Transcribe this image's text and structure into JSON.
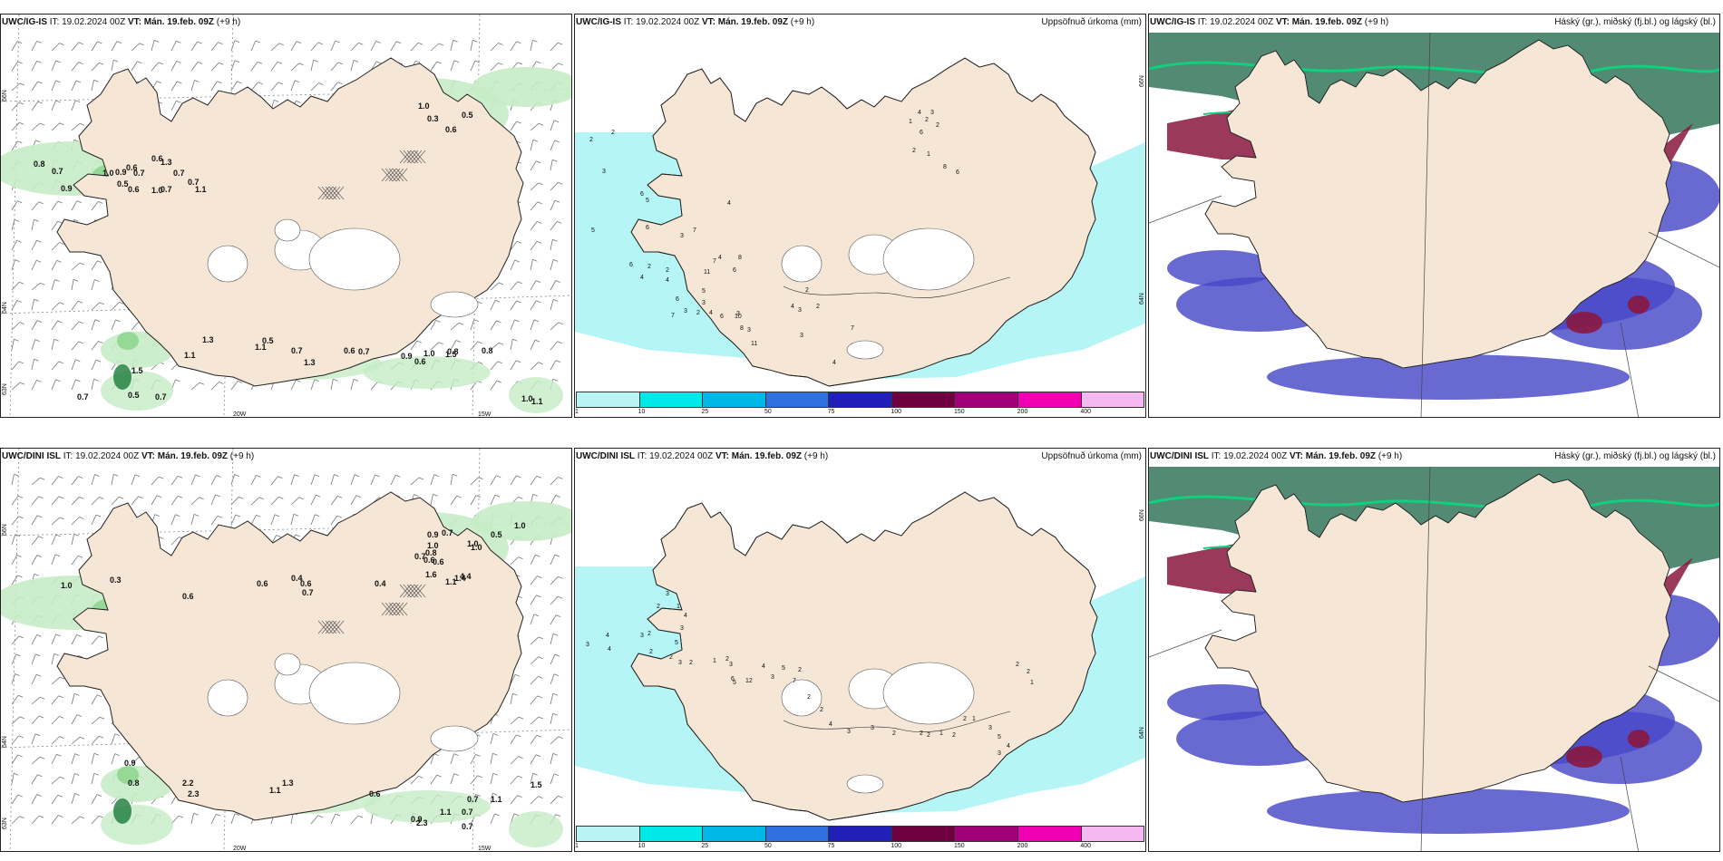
{
  "panels": [
    {
      "model": "UWC/IG-IS",
      "it_label": "IT:",
      "it_value": "19.02.2024 00Z",
      "vt_label": "VT:",
      "vt_value": "Mán. 19.feb. 09Z",
      "lead": "(+9 h)",
      "right_title": "",
      "kind": "wind-precip",
      "lat_labels": [
        "66N",
        "64N",
        "63N"
      ],
      "lon_labels": [
        "20W",
        "15W"
      ],
      "values": [
        "0.8",
        "0.7",
        "0.9",
        "1.0",
        "0.9",
        "0.6",
        "0.7",
        "0.5",
        "0.6",
        "1.0",
        "0.7",
        "0.6",
        "0.7",
        "0.7",
        "1.1",
        "1.3",
        "1.0",
        "0.3",
        "0.6",
        "0.5",
        "1.3",
        "1.1",
        "1.5",
        "0.5",
        "1.1",
        "0.7",
        "0.5",
        "1.3",
        "0.6",
        "0.7",
        "0.9",
        "1.0",
        "0.8",
        "0.6",
        "1.5",
        "0.8",
        "0.7",
        "0.7",
        "1.1",
        "1.0"
      ]
    },
    {
      "model": "UWC/IG-IS",
      "it_label": "IT:",
      "it_value": "19.02.2024 00Z",
      "vt_label": "VT:",
      "vt_value": "Mán. 19.feb. 09Z",
      "lead": "(+9 h)",
      "right_title": "Uppsöfnuð úrkoma (mm)",
      "kind": "accum",
      "lat_labels": [
        "66N",
        "64N"
      ],
      "values": [
        "2",
        "2",
        "3",
        "5",
        "6",
        "5",
        "6",
        "4",
        "3",
        "7",
        "4",
        "6",
        "2",
        "2",
        "5",
        "3",
        "4",
        "6",
        "11",
        "7",
        "4",
        "6",
        "8",
        "7",
        "3",
        "2",
        "4",
        "6",
        "10",
        "8",
        "11",
        "7",
        "3",
        "4",
        "3",
        "2",
        "2",
        "4",
        "3",
        "3",
        "2",
        "1",
        "1",
        "4",
        "2",
        "3",
        "2",
        "6",
        "8",
        "6"
      ]
    },
    {
      "model": "UWC/IG-IS",
      "it_label": "IT:",
      "it_value": "19.02.2024 00Z",
      "vt_label": "VT:",
      "vt_value": "Mán. 19.feb. 09Z",
      "lead": "(+9 h)",
      "right_title": "Háský (gr.), miðský (fj.bl.) og lágský (bl.)",
      "kind": "clouds"
    },
    {
      "model": "UWC/DINI ISL",
      "it_label": "IT:",
      "it_value": "19.02.2024 00Z",
      "vt_label": "VT:",
      "vt_value": "Mán. 19.feb. 09Z",
      "lead": "(+9 h)",
      "right_title": "",
      "kind": "wind-precip",
      "lat_labels": [
        "66N",
        "64N",
        "63N"
      ],
      "lon_labels": [
        "20W",
        "15W"
      ],
      "values": [
        "1.0",
        "0.5",
        "1.0",
        "0.7",
        "0.9",
        "1.0",
        "0.8",
        "0.6",
        "1.6",
        "1.1",
        "1.4",
        "4.4",
        "0.7",
        "1.0",
        "0.6",
        "0.4",
        "0.4",
        "0.6",
        "0.6",
        "0.7",
        "0.6",
        "1.0",
        "0.3",
        "0.9",
        "0.8",
        "2.2",
        "2.3",
        "1.1",
        "1.3",
        "0.6",
        "0.9",
        "2.3",
        "0.7",
        "1.1",
        "0.7",
        "1.5",
        "0.7",
        "1.1"
      ]
    },
    {
      "model": "UWC/DINI ISL",
      "it_label": "IT:",
      "it_value": "19.02.2024 00Z",
      "vt_label": "VT:",
      "vt_value": "Mán. 19.feb. 09Z",
      "lead": "(+9 h)",
      "right_title": "Uppsöfnuð úrkoma (mm)",
      "kind": "accum",
      "lat_labels": [
        "66N",
        "64N"
      ],
      "values": [
        "4",
        "3",
        "4",
        "3",
        "2",
        "2",
        "3",
        "1",
        "2",
        "3",
        "4",
        "5",
        "2",
        "3",
        "2",
        "1",
        "2",
        "3",
        "6",
        "5",
        "12",
        "7",
        "4",
        "3",
        "5",
        "2",
        "2",
        "2",
        "4",
        "3",
        "3",
        "2",
        "2",
        "2",
        "1",
        "2",
        "2",
        "1",
        "3",
        "5",
        "4",
        "3",
        "2",
        "2",
        "1"
      ]
    },
    {
      "model": "UWC/DINI ISL",
      "it_label": "IT:",
      "it_value": "19.02.2024 00Z",
      "vt_label": "VT:",
      "vt_value": "Mán. 19.feb. 09Z",
      "lead": "(+9 h)",
      "right_title": "Háský (gr.), miðský (fj.bl.) og lágský (bl.)",
      "kind": "clouds"
    }
  ],
  "colorbar": {
    "labels": [
      "1",
      "10",
      "25",
      "50",
      "75",
      "100",
      "150",
      "200",
      "400"
    ],
    "colors": [
      "#b8f4f4",
      "#00e8e8",
      "#00b8e8",
      "#3070e0",
      "#2020b8",
      "#700040",
      "#a00078",
      "#f000b0",
      "#f5b8f0"
    ]
  },
  "colors": {
    "land": "#f5e6d6",
    "precip_light": "#c6ecc6",
    "precip_mid": "#7fd07f",
    "precip_heavy": "#1a7a3a",
    "snow_purple": "#c050c8",
    "accum": "#b5f5f5",
    "high_cloud": "#3a7a60",
    "mid_cloud": "#8a1840",
    "low_cloud": "#4848c8"
  }
}
